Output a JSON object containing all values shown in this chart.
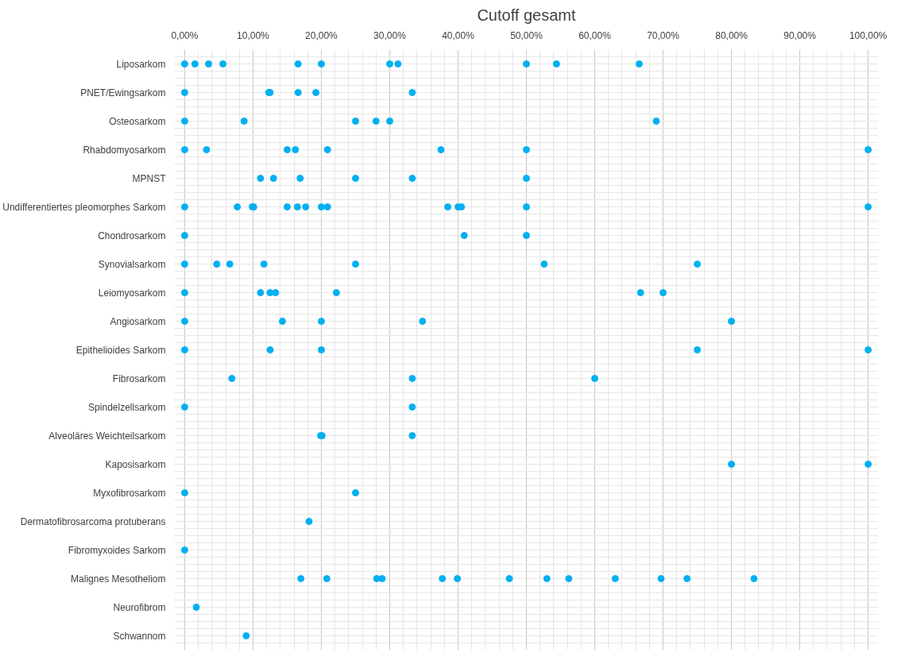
{
  "chart_data": {
    "type": "scatter",
    "title": "Cutoff gesamt",
    "orientation": "horizontal",
    "categories": [
      "Liposarkom",
      "PNET/Ewingsarkom",
      "Osteosarkom",
      "Rhabdomyosarkom",
      "MPNST",
      "Undifferentiertes pleomorphes Sarkom",
      "Chondrosarkom",
      "Synovialsarkom",
      "Leiomyosarkom",
      "Angiosarkom",
      "Epithelioides Sarkom",
      "Fibrosarkom",
      "Spindelzellsarkom",
      "Alveoläres Weichteilsarkom",
      "Kaposisarkom",
      "Myxofibrosarkom",
      "Dermatofibrosarcoma protuberans",
      "Fibromyxoides Sarkom",
      "Malignes Mesotheliom",
      "Neurofibrom",
      "Schwannom"
    ],
    "series": [
      {
        "color": "#00b0f0",
        "x": [
          "Liposarkom",
          "Liposarkom",
          "Liposarkom",
          "Liposarkom",
          "Liposarkom",
          "Liposarkom",
          "Liposarkom",
          "Liposarkom",
          "Liposarkom",
          "Liposarkom",
          "Liposarkom"
        ],
        "values": [
          0,
          1.5,
          3.5,
          5.6,
          16.6,
          20,
          30,
          31.2,
          50,
          54.4,
          66.5
        ]
      },
      {
        "color": "#00b0f0",
        "x": [
          "PNET/Ewingsarkom",
          "PNET/Ewingsarkom",
          "PNET/Ewingsarkom",
          "PNET/Ewingsarkom",
          "PNET/Ewingsarkom",
          "PNET/Ewingsarkom"
        ],
        "values": [
          0,
          12.3,
          12.5,
          16.6,
          19.2,
          33.3
        ]
      },
      {
        "color": "#00b0f0",
        "x": [
          "Osteosarkom",
          "Osteosarkom",
          "Osteosarkom",
          "Osteosarkom",
          "Osteosarkom",
          "Osteosarkom"
        ],
        "values": [
          0,
          8.7,
          25,
          28,
          30,
          69
        ]
      },
      {
        "color": "#00b0f0",
        "x": [
          "Rhabdomyosarkom",
          "Rhabdomyosarkom",
          "Rhabdomyosarkom",
          "Rhabdomyosarkom",
          "Rhabdomyosarkom",
          "Rhabdomyosarkom",
          "Rhabdomyosarkom",
          "Rhabdomyosarkom"
        ],
        "values": [
          0,
          3.2,
          15,
          16.2,
          20.9,
          37.5,
          50,
          100
        ]
      },
      {
        "color": "#00b0f0",
        "x": [
          "MPNST",
          "MPNST",
          "MPNST",
          "MPNST",
          "MPNST",
          "MPNST"
        ],
        "values": [
          11.1,
          13,
          16.9,
          25,
          33.3,
          50
        ]
      },
      {
        "color": "#00b0f0",
        "x": [
          "Undifferentiertes pleomorphes Sarkom",
          "Undifferentiertes pleomorphes Sarkom",
          "Undifferentiertes pleomorphes Sarkom",
          "Undifferentiertes pleomorphes Sarkom",
          "Undifferentiertes pleomorphes Sarkom",
          "Undifferentiertes pleomorphes Sarkom",
          "Undifferentiertes pleomorphes Sarkom",
          "Undifferentiertes pleomorphes Sarkom",
          "Undifferentiertes pleomorphes Sarkom",
          "Undifferentiertes pleomorphes Sarkom",
          "Undifferentiertes pleomorphes Sarkom",
          "Undifferentiertes pleomorphes Sarkom",
          "Undifferentiertes pleomorphes Sarkom",
          "Undifferentiertes pleomorphes Sarkom"
        ],
        "values": [
          0,
          7.7,
          9.9,
          10.1,
          15,
          16.5,
          17.7,
          20,
          20.9,
          38.5,
          40,
          40.5,
          50,
          100
        ]
      },
      {
        "color": "#00b0f0",
        "x": [
          "Chondrosarkom",
          "Chondrosarkom",
          "Chondrosarkom"
        ],
        "values": [
          0,
          40.9,
          50
        ]
      },
      {
        "color": "#00b0f0",
        "x": [
          "Synovialsarkom",
          "Synovialsarkom",
          "Synovialsarkom",
          "Synovialsarkom",
          "Synovialsarkom",
          "Synovialsarkom",
          "Synovialsarkom"
        ],
        "values": [
          0,
          4.7,
          6.6,
          11.6,
          25,
          52.6,
          75
        ]
      },
      {
        "color": "#00b0f0",
        "x": [
          "Leiomyosarkom",
          "Leiomyosarkom",
          "Leiomyosarkom",
          "Leiomyosarkom",
          "Leiomyosarkom",
          "Leiomyosarkom",
          "Leiomyosarkom"
        ],
        "values": [
          0,
          11.1,
          12.5,
          13.3,
          22.2,
          66.7,
          70
        ]
      },
      {
        "color": "#00b0f0",
        "x": [
          "Angiosarkom",
          "Angiosarkom",
          "Angiosarkom",
          "Angiosarkom",
          "Angiosarkom"
        ],
        "values": [
          0,
          14.3,
          20,
          34.8,
          80
        ]
      },
      {
        "color": "#00b0f0",
        "x": [
          "Epithelioides Sarkom",
          "Epithelioides Sarkom",
          "Epithelioides Sarkom",
          "Epithelioides Sarkom",
          "Epithelioides Sarkom"
        ],
        "values": [
          0,
          12.5,
          20,
          75,
          100
        ]
      },
      {
        "color": "#00b0f0",
        "x": [
          "Fibrosarkom",
          "Fibrosarkom",
          "Fibrosarkom"
        ],
        "values": [
          6.9,
          33.3,
          60
        ]
      },
      {
        "color": "#00b0f0",
        "x": [
          "Spindelzellsarkom",
          "Spindelzellsarkom"
        ],
        "values": [
          0,
          33.3
        ]
      },
      {
        "color": "#00b0f0",
        "x": [
          "Alveoläres Weichteilsarkom",
          "Alveoläres Weichteilsarkom",
          "Alveoläres Weichteilsarkom"
        ],
        "values": [
          19.9,
          20.1,
          33.3
        ]
      },
      {
        "color": "#00b0f0",
        "x": [
          "Kaposisarkom",
          "Kaposisarkom"
        ],
        "values": [
          80,
          100
        ]
      },
      {
        "color": "#00b0f0",
        "x": [
          "Myxofibrosarkom",
          "Myxofibrosarkom"
        ],
        "values": [
          0,
          25
        ]
      },
      {
        "color": "#00b0f0",
        "x": [
          "Dermatofibrosarcoma protuberans"
        ],
        "values": [
          18.2
        ]
      },
      {
        "color": "#00b0f0",
        "x": [
          "Fibromyxoides Sarkom"
        ],
        "values": [
          0
        ]
      },
      {
        "color": "#00b0f0",
        "x": [
          "Malignes Mesotheliom",
          "Malignes Mesotheliom",
          "Malignes Mesotheliom",
          "Malignes Mesotheliom",
          "Malignes Mesotheliom",
          "Malignes Mesotheliom",
          "Malignes Mesotheliom",
          "Malignes Mesotheliom",
          "Malignes Mesotheliom",
          "Malignes Mesotheliom",
          "Malignes Mesotheliom",
          "Malignes Mesotheliom",
          "Malignes Mesotheliom"
        ],
        "values": [
          17,
          20.8,
          28.1,
          28.9,
          37.7,
          39.9,
          47.5,
          53,
          56.2,
          63,
          69.7,
          73.5,
          83.3
        ]
      },
      {
        "color": "#00b0f0",
        "x": [
          "Neurofibrom"
        ],
        "values": [
          1.7
        ]
      },
      {
        "color": "#00b0f0",
        "x": [
          "Schwannom"
        ],
        "values": [
          9.0
        ]
      }
    ],
    "xlim": [
      -1.5,
      101.5
    ],
    "xticks": [
      {
        "value": 0,
        "label": "0,00%"
      },
      {
        "value": 10,
        "label": "10,00%"
      },
      {
        "value": 20,
        "label": "20,00%"
      },
      {
        "value": 30,
        "label": "30,00%"
      },
      {
        "value": 40,
        "label": "40,00%"
      },
      {
        "value": 50,
        "label": "50,00%"
      },
      {
        "value": 60,
        "label": "60,00%"
      },
      {
        "value": 70,
        "label": "70,00%"
      },
      {
        "value": 80,
        "label": "80,00%"
      },
      {
        "value": 90,
        "label": "90,00%"
      },
      {
        "value": 100,
        "label": "100,00%"
      }
    ],
    "grid": true,
    "marker": "circle"
  }
}
